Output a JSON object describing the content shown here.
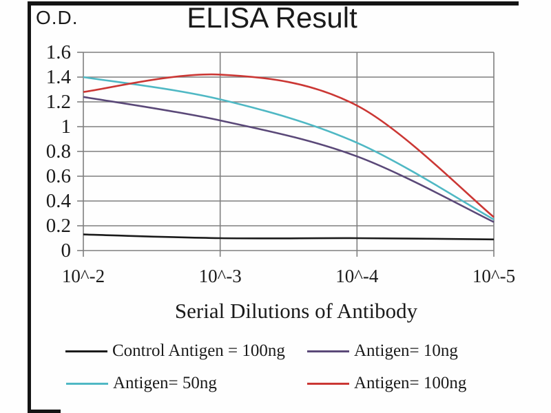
{
  "chart_data": {
    "type": "line",
    "title": "ELISA Result",
    "ylabel": "O.D.",
    "xlabel": "Serial Dilutions of Antibody",
    "x_tick_labels": [
      "10^-2",
      "10^-3",
      "10^-4",
      "10^-5"
    ],
    "y_tick_labels": [
      "1.6",
      "1.4",
      "1.2",
      "1",
      "0.8",
      "0.6",
      "0.4",
      "0.2",
      "0"
    ],
    "y_tick_values": [
      1.6,
      1.4,
      1.2,
      1.0,
      0.8,
      0.6,
      0.4,
      0.2,
      0
    ],
    "ylim": [
      0,
      1.6
    ],
    "grid": true,
    "line_style": "smooth",
    "legend_position": "bottom",
    "axis_color": "#7f7f7f",
    "series": [
      {
        "name": "Control Antigen = 100ng",
        "color": "#1a1a1a",
        "values": [
          0.13,
          0.1,
          0.1,
          0.09
        ]
      },
      {
        "name": "Antigen= 10ng",
        "color": "#5a4878",
        "values": [
          1.24,
          1.05,
          0.76,
          0.23
        ]
      },
      {
        "name": "Antigen= 50ng",
        "color": "#4fb8c4",
        "values": [
          1.4,
          1.22,
          0.87,
          0.25
        ]
      },
      {
        "name": "Antigen= 100ng",
        "color": "#cb3734",
        "values": [
          1.28,
          1.42,
          1.17,
          0.27
        ]
      }
    ]
  }
}
